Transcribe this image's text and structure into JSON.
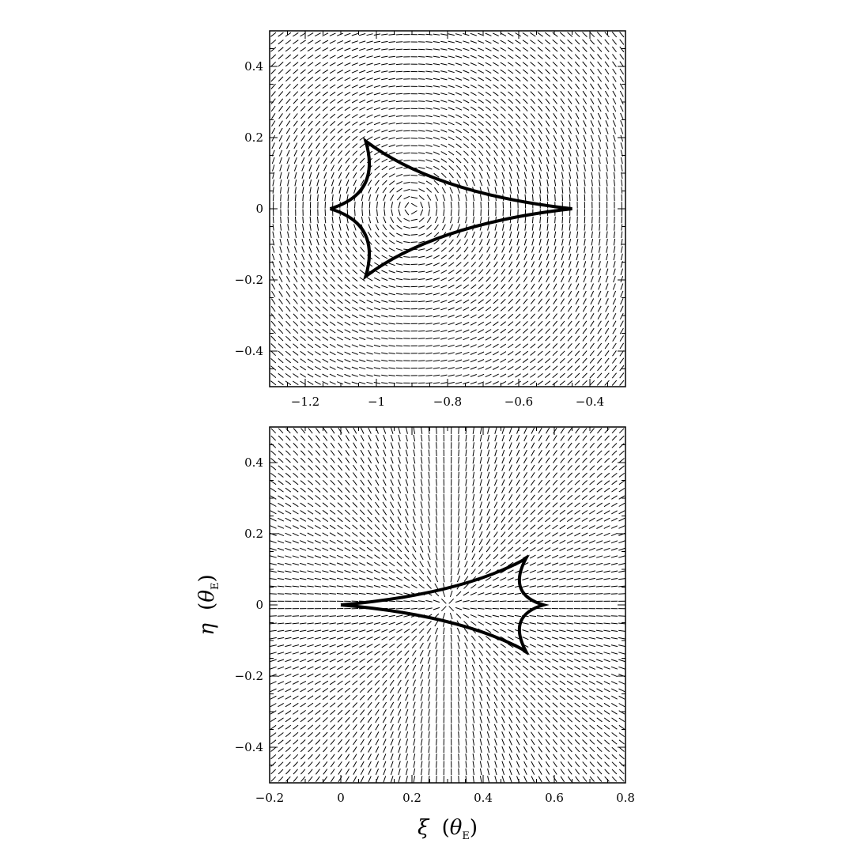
{
  "chart_data": [
    {
      "type": "scatter",
      "panel": "top",
      "title": "",
      "xlabel": "",
      "ylabel": "",
      "xlim": [
        -1.3,
        -0.3
      ],
      "ylim": [
        -0.5,
        0.5
      ],
      "xticks": [
        -1.2,
        -1.0,
        -0.8,
        -0.6,
        -0.4
      ],
      "xtick_labels": [
        "−1.2",
        "−1",
        "−0.8",
        "−0.6",
        "−0.4"
      ],
      "yticks": [
        0.4,
        0.2,
        0.0,
        -0.2,
        -0.4
      ],
      "ytick_labels": [
        "0.4",
        "0.2",
        "0",
        "−0.2",
        "−0.4"
      ],
      "grid": false,
      "caustic": {
        "cusps": [
          [
            -1.13,
            0.0
          ],
          [
            -1.03,
            0.19
          ],
          [
            -1.03,
            -0.19
          ],
          [
            -0.45,
            0.0
          ]
        ],
        "field_center": [
          -0.9,
          0.0
        ]
      }
    },
    {
      "type": "scatter",
      "panel": "bottom",
      "title": "",
      "xlim": [
        -0.2,
        0.8
      ],
      "ylim": [
        -0.5,
        0.5
      ],
      "xticks": [
        -0.2,
        0.0,
        0.2,
        0.4,
        0.6,
        0.8
      ],
      "xtick_labels": [
        "−0.2",
        "0",
        "0.2",
        "0.4",
        "0.6",
        "0.8"
      ],
      "yticks": [
        0.4,
        0.2,
        0.0,
        -0.2,
        -0.4
      ],
      "ytick_labels": [
        "0.4",
        "0.2",
        "0",
        "−0.2",
        "−0.4"
      ],
      "grid": false,
      "xlabel": {
        "symbol": "ξ",
        "unit": "θ",
        "sub": "E"
      },
      "ylabel": {
        "symbol": "η",
        "unit": "θ",
        "sub": "E"
      },
      "caustic": {
        "cusps": [
          [
            0.0,
            0.0
          ],
          [
            0.52,
            0.13
          ],
          [
            0.52,
            -0.13
          ],
          [
            0.57,
            0.0
          ]
        ],
        "field_center": [
          0.3,
          0.0
        ]
      }
    }
  ]
}
